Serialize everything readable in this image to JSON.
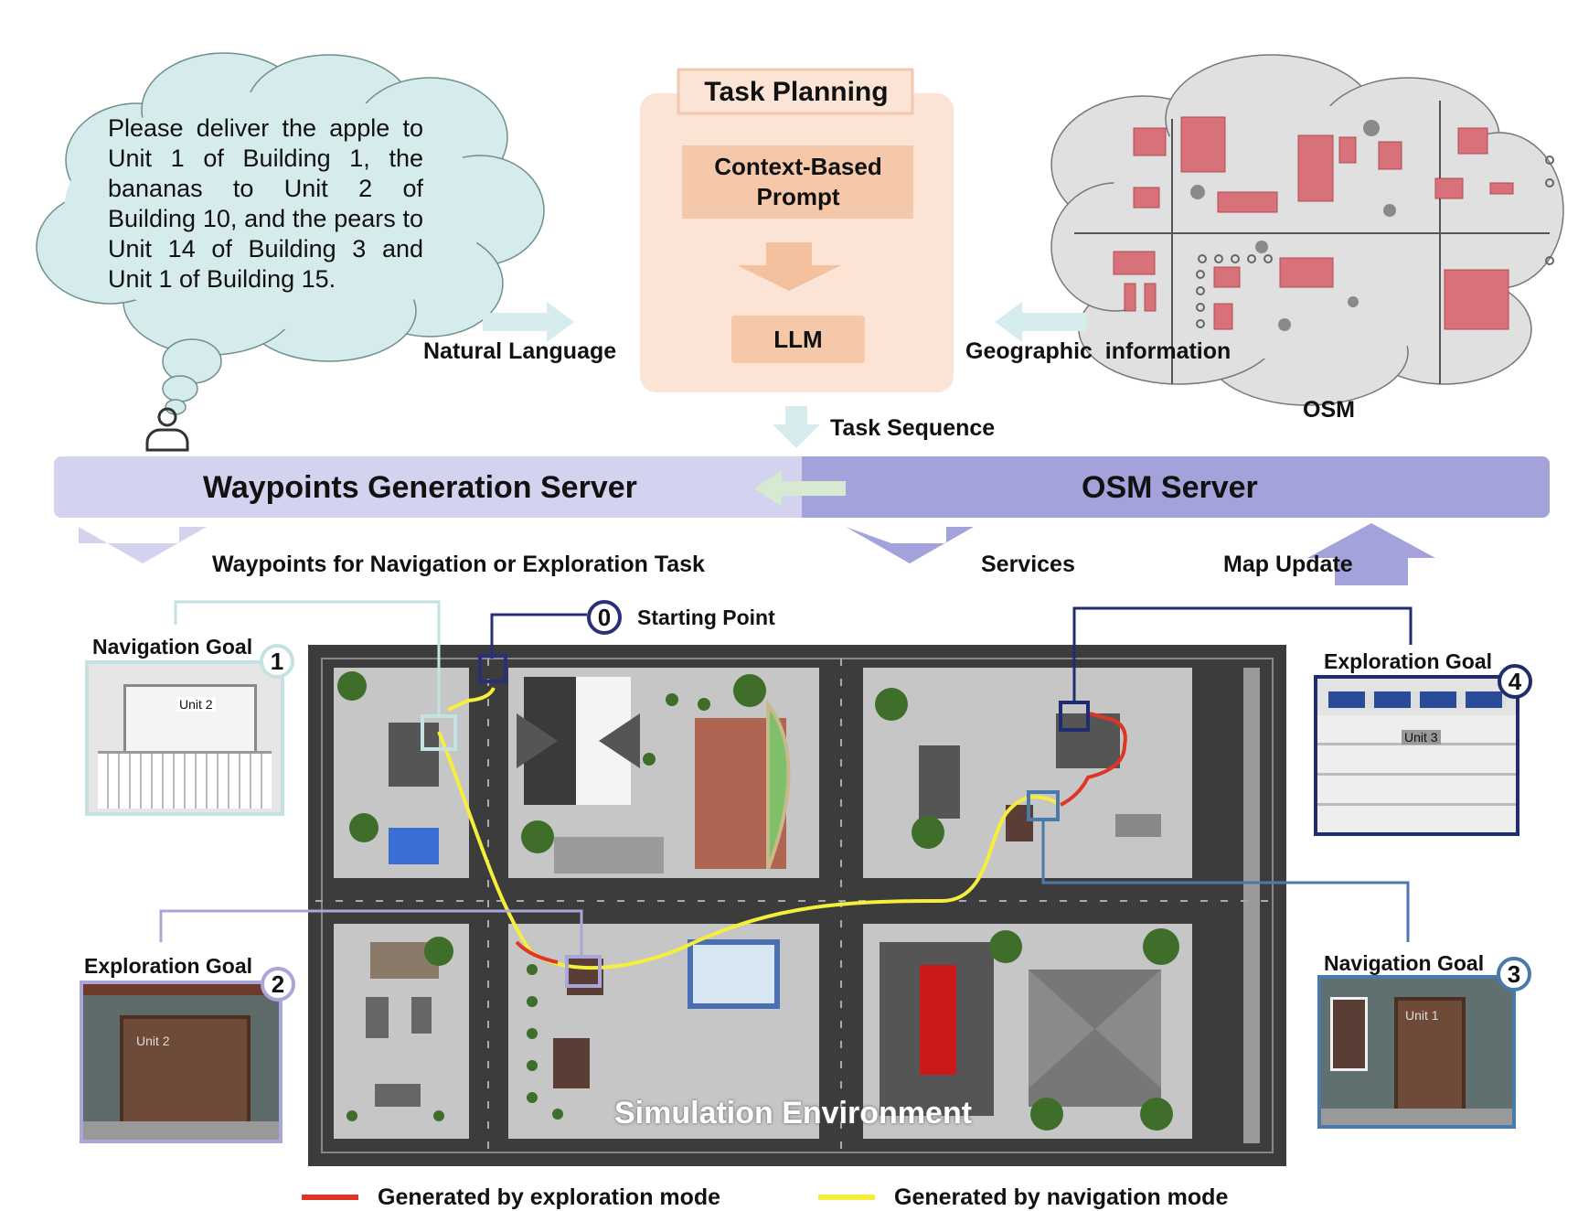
{
  "cloud": {
    "instruction": "Please deliver the apple to Unit 1 of Building 1, the bananas to Unit 2 of Building 10, and the pears to Unit 14 of Building 3 and Unit 1 of Building 15."
  },
  "labels": {
    "natural_language": "Natural Language",
    "geographic_information": "Geographic  information",
    "osm": "OSM",
    "task_sequence": "Task Sequence",
    "waypoints_for_task": "Waypoints for Navigation or Exploration Task",
    "services": "Services",
    "map_update": "Map Update",
    "starting_point": "Starting Point",
    "simulation_environment": "Simulation Environment"
  },
  "task_planning": {
    "title": "Task Planning",
    "prompt": "Context-Based Prompt",
    "llm": "LLM"
  },
  "servers": {
    "waypoints": "Waypoints Generation Server",
    "osm": "OSM Server"
  },
  "goals": [
    {
      "number": "1",
      "label": "Navigation Goal",
      "unit": "Unit 2",
      "border": "#c4e2e2"
    },
    {
      "number": "2",
      "label": "Exploration Goal",
      "unit": "Unit 2",
      "border": "#a9a7d8"
    },
    {
      "number": "3",
      "label": "Navigation Goal",
      "unit": "Unit 1",
      "border": "#4a7aab"
    },
    {
      "number": "4",
      "label": "Exploration Goal",
      "unit": "Unit 3",
      "border": "#1f2d6e"
    }
  ],
  "start_badge": "0",
  "legend": {
    "exploration": "Generated by exploration mode",
    "navigation": "Generated by navigation mode",
    "exploration_color": "#e03526",
    "navigation_color": "#f5ee3c"
  }
}
